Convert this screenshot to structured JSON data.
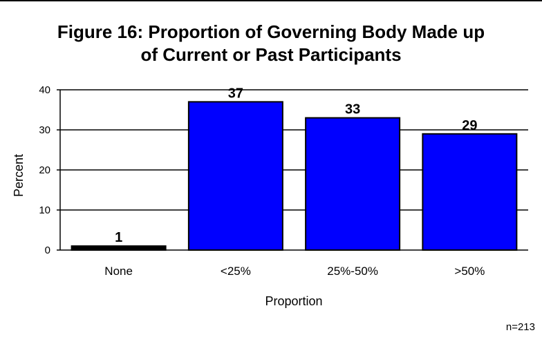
{
  "chart_data": {
    "type": "bar",
    "title_lines": [
      "Figure 16: Proportion of Governing Body Made up",
      "of Current or Past Participants"
    ],
    "xlabel": "Proportion",
    "ylabel": "Percent",
    "categories": [
      "None",
      "<25%",
      "25%-50%",
      ">50%"
    ],
    "values": [
      1,
      37,
      33,
      29
    ],
    "data_labels": [
      "1",
      "37",
      "33",
      "29"
    ],
    "ylim": [
      0,
      40
    ],
    "yticks": [
      "0",
      "10",
      "20",
      "30",
      "40"
    ],
    "grid": "horizontal",
    "bar_colors": [
      "#000000",
      "#0000ff",
      "#0000ff",
      "#0000ff"
    ],
    "bar_outline": "#000000",
    "footnote": "n=213"
  }
}
